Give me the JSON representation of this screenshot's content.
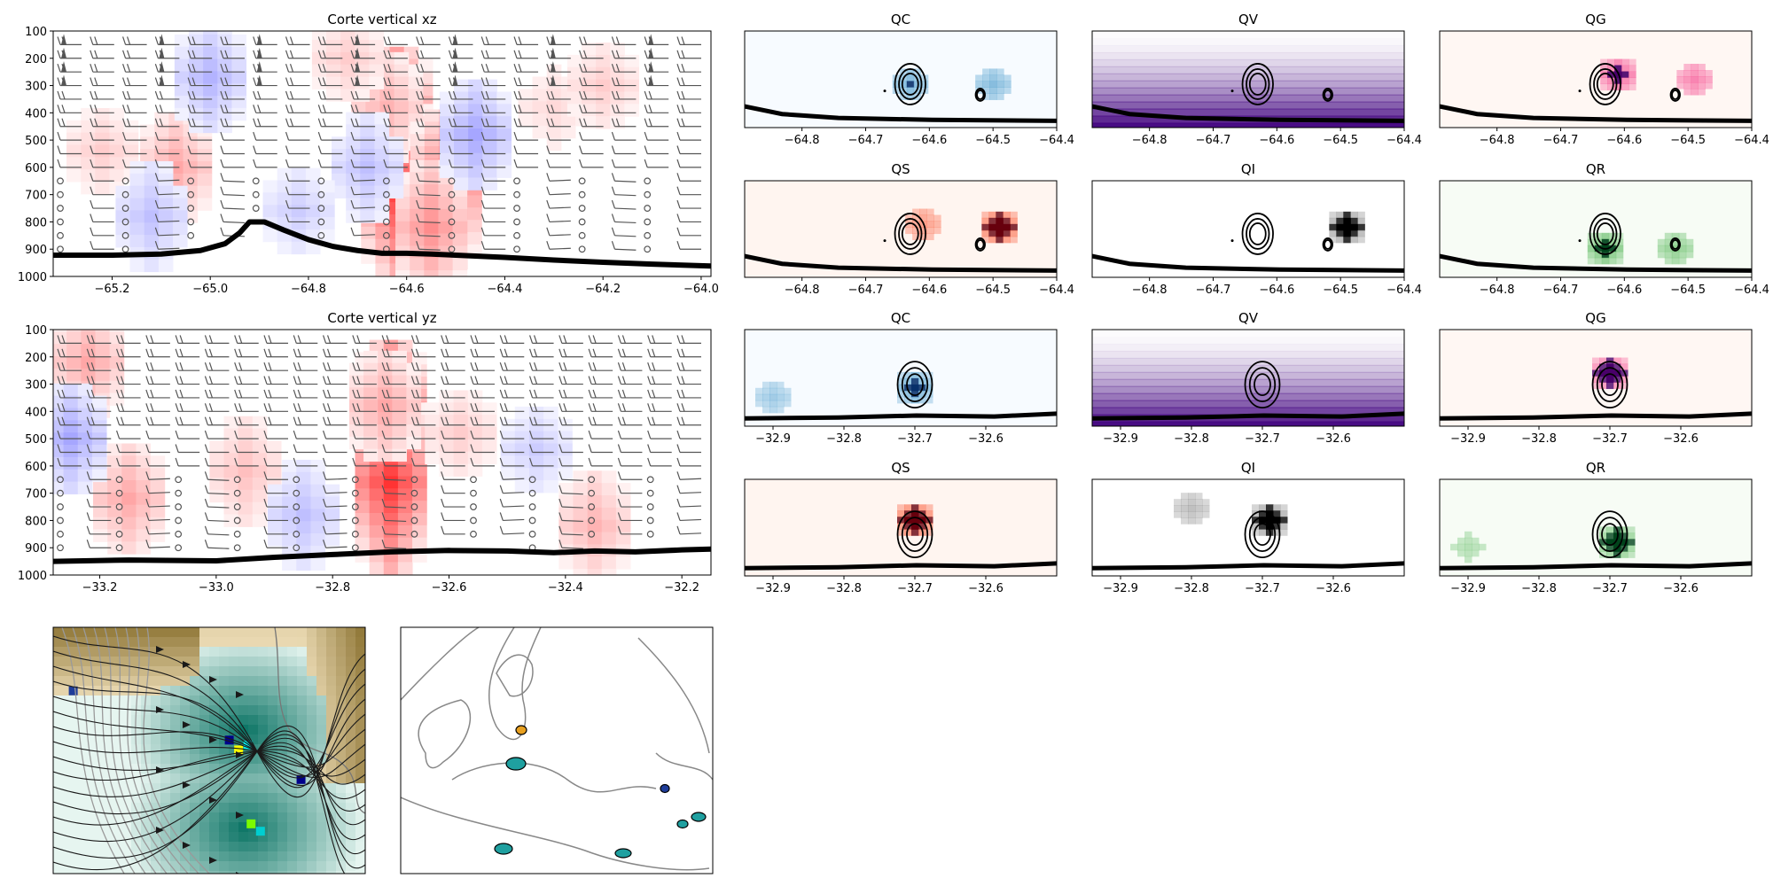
{
  "chart_data": [
    {
      "id": "xz",
      "type": "heatmap",
      "title": "Corte vertical xz",
      "x_ticks": [
        -65.2,
        -65.0,
        -64.8,
        -64.6,
        -64.4,
        -64.2,
        -64.0
      ],
      "x_tick_labels": [
        "−65.2",
        "−65.0",
        "−64.8",
        "−64.6",
        "−64.4",
        "−64.2",
        "−64.0"
      ],
      "xlim": [
        -65.32,
        -63.98
      ],
      "y_ticks": [
        100,
        200,
        300,
        400,
        500,
        600,
        700,
        800,
        900,
        1000
      ],
      "y_tick_labels": [
        "100",
        "200",
        "300",
        "400",
        "500",
        "600",
        "700",
        "800",
        "900",
        "1000"
      ],
      "ylim": [
        1000,
        100
      ],
      "colormap": "bwr",
      "overlays": [
        "wind barbs",
        "terrain line"
      ],
      "terrain": {
        "x": [
          -65.32,
          -65.2,
          -65.1,
          -65.02,
          -64.97,
          -64.94,
          -64.92,
          -64.89,
          -64.85,
          -64.8,
          -64.75,
          -64.7,
          -64.65,
          -64.6,
          -64.55,
          -64.5,
          -64.4,
          -64.3,
          -64.2,
          -64.1,
          -63.98
        ],
        "y": [
          922,
          922,
          918,
          905,
          880,
          840,
          800,
          800,
          830,
          865,
          890,
          905,
          915,
          915,
          918,
          922,
          930,
          940,
          948,
          955,
          962
        ]
      },
      "anomalies": [
        {
          "x": -64.62,
          "p": 540,
          "value": 1.0
        },
        {
          "x": -64.62,
          "p": 660,
          "value": 0.8
        },
        {
          "x": -64.64,
          "p": 380,
          "value": 0.3
        },
        {
          "x": -64.52,
          "p": 680,
          "value": 0.6
        },
        {
          "x": -64.55,
          "p": 820,
          "value": 0.45
        },
        {
          "x": -65.07,
          "p": 600,
          "value": 0.35
        },
        {
          "x": -65.22,
          "p": 540,
          "value": 0.2
        },
        {
          "x": -64.72,
          "p": 200,
          "value": 0.2
        },
        {
          "x": -64.3,
          "p": 380,
          "value": 0.15
        },
        {
          "x": -64.2,
          "p": 300,
          "value": 0.2
        },
        {
          "x": -65.0,
          "p": 270,
          "value": -0.3
        },
        {
          "x": -64.68,
          "p": 600,
          "value": -0.25
        },
        {
          "x": -64.46,
          "p": 480,
          "value": -0.35
        },
        {
          "x": -65.12,
          "p": 780,
          "value": -0.25
        },
        {
          "x": -64.82,
          "p": 760,
          "value": -0.2
        }
      ]
    },
    {
      "id": "yz",
      "type": "heatmap",
      "title": "Corte vertical yz",
      "x_ticks": [
        -33.2,
        -33.0,
        -32.8,
        -32.6,
        -32.4,
        -32.2
      ],
      "x_tick_labels": [
        "−33.2",
        "−33.0",
        "−32.8",
        "−32.6",
        "−32.4",
        "−32.2"
      ],
      "xlim": [
        -33.28,
        -32.15
      ],
      "y_ticks": [
        100,
        200,
        300,
        400,
        500,
        600,
        700,
        800,
        900,
        1000
      ],
      "y_tick_labels": [
        "100",
        "200",
        "300",
        "400",
        "500",
        "600",
        "700",
        "800",
        "900",
        "1000"
      ],
      "ylim": [
        1000,
        100
      ],
      "colormap": "bwr",
      "overlays": [
        "wind barbs",
        "terrain line"
      ],
      "terrain": {
        "x": [
          -33.28,
          -33.15,
          -33.0,
          -32.9,
          -32.8,
          -32.7,
          -32.6,
          -32.5,
          -32.42,
          -32.35,
          -32.28,
          -32.2,
          -32.15
        ],
        "y": [
          950,
          945,
          948,
          935,
          925,
          915,
          910,
          912,
          918,
          912,
          915,
          908,
          905
        ]
      },
      "anomalies": [
        {
          "x": -32.7,
          "p": 520,
          "value": 1.0
        },
        {
          "x": -32.7,
          "p": 660,
          "value": 0.8
        },
        {
          "x": -32.71,
          "p": 380,
          "value": 0.35
        },
        {
          "x": -33.22,
          "p": 220,
          "value": 0.35
        },
        {
          "x": -33.15,
          "p": 720,
          "value": 0.35
        },
        {
          "x": -32.95,
          "p": 620,
          "value": 0.25
        },
        {
          "x": -32.58,
          "p": 480,
          "value": 0.2
        },
        {
          "x": -32.35,
          "p": 820,
          "value": 0.3
        },
        {
          "x": -33.25,
          "p": 500,
          "value": -0.35
        },
        {
          "x": -32.85,
          "p": 780,
          "value": -0.25
        },
        {
          "x": -32.45,
          "p": 540,
          "value": -0.2
        }
      ]
    },
    {
      "id": "xz-QC",
      "group": "xz-small",
      "title": "QC",
      "colormap": "Blues",
      "x_ticks": [
        -64.8,
        -64.7,
        -64.6,
        -64.5,
        -64.4
      ],
      "x_tick_labels": [
        "−64.8",
        "−64.7",
        "−64.6",
        "−64.5",
        "−64.4"
      ],
      "blobs": [
        {
          "x": -64.63,
          "p": 0.55,
          "value": 0.7
        },
        {
          "x": -64.5,
          "p": 0.55,
          "value": 0.6
        }
      ]
    },
    {
      "id": "xz-QV",
      "group": "xz-small",
      "title": "QV",
      "colormap": "Purples",
      "x_ticks": [
        -64.8,
        -64.7,
        -64.6,
        -64.5,
        -64.4
      ],
      "x_tick_labels": [
        "−64.8",
        "−64.7",
        "−64.6",
        "−64.5",
        "−64.4"
      ],
      "blobs": []
    },
    {
      "id": "xz-QG",
      "group": "xz-small",
      "title": "QG",
      "colormap": "RdPu",
      "x_ticks": [
        -64.8,
        -64.7,
        -64.6,
        -64.5,
        -64.4
      ],
      "x_tick_labels": [
        "−64.8",
        "−64.7",
        "−64.6",
        "−64.5",
        "−64.4"
      ],
      "blobs": [
        {
          "x": -64.61,
          "p": 0.45,
          "value": 0.9
        },
        {
          "x": -64.49,
          "p": 0.5,
          "value": 0.6
        }
      ]
    },
    {
      "id": "xz-QS",
      "group": "xz-small",
      "title": "QS",
      "colormap": "Reds",
      "x_ticks": [
        -64.8,
        -64.7,
        -64.6,
        -64.5,
        -64.4
      ],
      "x_tick_labels": [
        "−64.8",
        "−64.7",
        "−64.6",
        "−64.5",
        "−64.4"
      ],
      "blobs": [
        {
          "x": -64.49,
          "p": 0.48,
          "value": 1.0
        },
        {
          "x": -64.61,
          "p": 0.45,
          "value": 0.4
        }
      ]
    },
    {
      "id": "xz-QI",
      "group": "xz-small",
      "title": "QI",
      "colormap": "Greys",
      "x_ticks": [
        -64.8,
        -64.7,
        -64.6,
        -64.5,
        -64.4
      ],
      "x_tick_labels": [
        "−64.8",
        "−64.7",
        "−64.6",
        "−64.5",
        "−64.4"
      ],
      "blobs": [
        {
          "x": -64.49,
          "p": 0.48,
          "value": 1.0
        }
      ]
    },
    {
      "id": "xz-QR",
      "group": "xz-small",
      "title": "QR",
      "colormap": "Greens",
      "x_ticks": [
        -64.8,
        -64.7,
        -64.6,
        -64.5,
        -64.4
      ],
      "x_tick_labels": [
        "−64.8",
        "−64.7",
        "−64.6",
        "−64.5",
        "−64.4"
      ],
      "blobs": [
        {
          "x": -64.63,
          "p": 0.7,
          "value": 0.9
        },
        {
          "x": -64.52,
          "p": 0.7,
          "value": 0.6
        }
      ]
    },
    {
      "id": "yz-QC",
      "group": "yz-small",
      "title": "QC",
      "colormap": "Blues",
      "x_ticks": [
        -32.9,
        -32.8,
        -32.7,
        -32.6
      ],
      "x_tick_labels": [
        "−32.9",
        "−32.8",
        "−32.7",
        "−32.6"
      ],
      "blobs": [
        {
          "x": -32.7,
          "p": 0.6,
          "value": 0.85
        },
        {
          "x": -32.9,
          "p": 0.7,
          "value": 0.4
        }
      ]
    },
    {
      "id": "yz-QV",
      "group": "yz-small",
      "title": "QV",
      "colormap": "Purples",
      "x_ticks": [
        -32.9,
        -32.8,
        -32.7,
        -32.6
      ],
      "x_tick_labels": [
        "−32.9",
        "−32.8",
        "−32.7",
        "−32.6"
      ],
      "blobs": []
    },
    {
      "id": "yz-QG",
      "group": "yz-small",
      "title": "QG",
      "colormap": "RdPu",
      "x_ticks": [
        -32.9,
        -32.8,
        -32.7,
        -32.6
      ],
      "x_tick_labels": [
        "−32.9",
        "−32.8",
        "−32.7",
        "−32.6"
      ],
      "blobs": [
        {
          "x": -32.7,
          "p": 0.45,
          "value": 1.0
        }
      ]
    },
    {
      "id": "yz-QS",
      "group": "yz-small",
      "title": "QS",
      "colormap": "Reds",
      "x_ticks": [
        -32.9,
        -32.8,
        -32.7,
        -32.6
      ],
      "x_tick_labels": [
        "−32.9",
        "−32.8",
        "−32.7",
        "−32.6"
      ],
      "blobs": [
        {
          "x": -32.7,
          "p": 0.42,
          "value": 1.0
        }
      ]
    },
    {
      "id": "yz-QI",
      "group": "yz-small",
      "title": "QI",
      "colormap": "Greys",
      "x_ticks": [
        -32.9,
        -32.8,
        -32.7,
        -32.6
      ],
      "x_tick_labels": [
        "−32.9",
        "−32.8",
        "−32.7",
        "−32.6"
      ],
      "blobs": [
        {
          "x": -32.8,
          "p": 0.3,
          "value": 0.4
        },
        {
          "x": -32.69,
          "p": 0.42,
          "value": 1.0
        }
      ]
    },
    {
      "id": "yz-QR",
      "group": "yz-small",
      "title": "QR",
      "colormap": "Greens",
      "x_ticks": [
        -32.9,
        -32.8,
        -32.7,
        -32.6
      ],
      "x_tick_labels": [
        "−32.9",
        "−32.8",
        "−32.7",
        "−32.6"
      ],
      "blobs": [
        {
          "x": -32.69,
          "p": 0.65,
          "value": 1.0
        },
        {
          "x": -32.9,
          "p": 0.7,
          "value": 0.3
        }
      ]
    },
    {
      "id": "map-streamlines",
      "type": "heatmap",
      "title": "",
      "colormap": "BrBG",
      "overlays": [
        "streamlines",
        "pressure contours",
        "reflectivity"
      ]
    },
    {
      "id": "map-overview",
      "type": "heatmap",
      "title": "",
      "overlays": [
        "coastline contours",
        "reflectivity"
      ]
    }
  ],
  "colors": {
    "terrain": "#000000",
    "barbs": "#555555",
    "contour": "#000000",
    "coast": "#888888"
  }
}
